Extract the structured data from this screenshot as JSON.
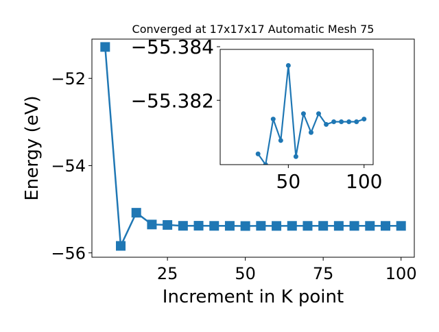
{
  "chart_data": [
    {
      "type": "line",
      "title": "Converged at 17x17x17 Automatic Mesh 75",
      "xlabel": "Increment in K point",
      "ylabel": "Energy (eV)",
      "xlim": [
        0.75,
        104.25
      ],
      "ylim": [
        -56.1,
        -51.1
      ],
      "xticks": [
        25,
        50,
        75,
        100
      ],
      "xtick_labels": [
        "25",
        "50",
        "75",
        "100"
      ],
      "yticks": [
        -52,
        -54,
        -56
      ],
      "ytick_labels": [
        "−52",
        "−54",
        "−56"
      ],
      "grid": false,
      "series": [
        {
          "marker": "square",
          "color": "#1f77b4",
          "x": [
            5,
            10,
            15,
            20,
            25,
            30,
            35,
            40,
            45,
            50,
            55,
            60,
            65,
            70,
            75,
            80,
            85,
            90,
            95,
            100
          ],
          "y": [
            -51.28,
            -55.84,
            -55.08,
            -55.35,
            -55.36,
            -55.38,
            -55.378,
            -55.3812,
            -55.3808,
            -55.3845,
            -55.3803,
            -55.3826,
            -55.3812,
            -55.3813,
            -55.3809,
            -55.3817,
            -55.3816,
            -55.3816,
            -55.3816,
            -55.3817
          ]
        }
      ]
    },
    {
      "type": "line",
      "title": "",
      "xlabel": "",
      "ylabel": "",
      "xlim": [
        5,
        106
      ],
      "ylim": [
        -55.3796,
        -55.3839
      ],
      "xticks": [
        50,
        100
      ],
      "xtick_labels": [
        "50",
        "100"
      ],
      "yticks": [
        -55.384,
        -55.382
      ],
      "ytick_labels": [
        "−55.384",
        "−55.382"
      ],
      "grid": false,
      "series": [
        {
          "marker": "circle",
          "color": "#1f77b4",
          "x": [
            30,
            35,
            40,
            45,
            50,
            55,
            60,
            65,
            70,
            75,
            80,
            85,
            90,
            95,
            100
          ],
          "y": [
            -55.38,
            -55.3796,
            -55.3813,
            -55.3805,
            -55.3833,
            -55.3799,
            -55.3815,
            -55.3808,
            -55.3815,
            -55.3811,
            -55.3812,
            -55.3812,
            -55.3812,
            -55.3812,
            -55.3813
          ]
        }
      ]
    }
  ]
}
